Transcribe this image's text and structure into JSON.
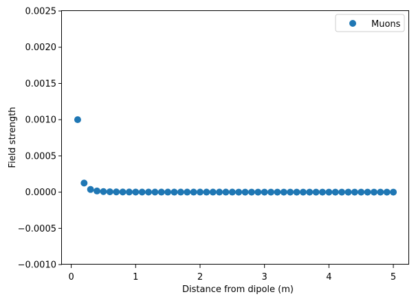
{
  "chart_data": {
    "type": "scatter",
    "title": "",
    "xlabel": "Distance from dipole (m)",
    "ylabel": "Field strength",
    "xlim": [
      -0.145,
      5.245
    ],
    "ylim": [
      -0.001,
      0.0025
    ],
    "xticks": [
      0,
      1,
      2,
      3,
      4,
      5
    ],
    "xtick_labels": [
      "0",
      "1",
      "2",
      "3",
      "4",
      "5"
    ],
    "yticks": [
      -0.001,
      -0.0005,
      0.0,
      0.0005,
      0.001,
      0.0015,
      0.002,
      0.0025
    ],
    "ytick_labels": [
      "−0.0010",
      "−0.0005",
      "0.0000",
      "0.0005",
      "0.0010",
      "0.0015",
      "0.0020",
      "0.0025"
    ],
    "grid": false,
    "legend_position": "upper right",
    "series": [
      {
        "name": "Muons",
        "color": "#1f77b4",
        "x": [
          0.1,
          0.2,
          0.3,
          0.4,
          0.5,
          0.6,
          0.7,
          0.8,
          0.9,
          1.0,
          1.1,
          1.2,
          1.3,
          1.4,
          1.5,
          1.6,
          1.7,
          1.8,
          1.9,
          2.0,
          2.1,
          2.2,
          2.3,
          2.4,
          2.5,
          2.6,
          2.7,
          2.8,
          2.9,
          3.0,
          3.1,
          3.2,
          3.3,
          3.4,
          3.5,
          3.6,
          3.7,
          3.8,
          3.9,
          4.0,
          4.1,
          4.2,
          4.3,
          4.4,
          4.5,
          4.6,
          4.7,
          4.8,
          4.9,
          5.0
        ],
        "y": [
          0.001,
          0.000125,
          3.7e-05,
          1.56e-05,
          8e-06,
          4.6e-06,
          2.9e-06,
          2e-06,
          1.4e-06,
          1e-06,
          7.5e-07,
          5.8e-07,
          4.6e-07,
          3.6e-07,
          3e-07,
          2.4e-07,
          2e-07,
          1.7e-07,
          1.5e-07,
          1.25e-07,
          1.1e-07,
          9.4e-08,
          8.2e-08,
          7.2e-08,
          6.4e-08,
          5.7e-08,
          5.1e-08,
          4.6e-08,
          4.1e-08,
          3.7e-08,
          3.4e-08,
          3e-08,
          2.8e-08,
          2.5e-08,
          2.3e-08,
          2.1e-08,
          2e-08,
          1.8e-08,
          1.7e-08,
          1.6e-08,
          1.5e-08,
          1.3e-08,
          1.3e-08,
          1.2e-08,
          1.1e-08,
          1e-08,
          9.6e-09,
          9e-09,
          8.5e-09,
          8e-09
        ]
      }
    ]
  }
}
